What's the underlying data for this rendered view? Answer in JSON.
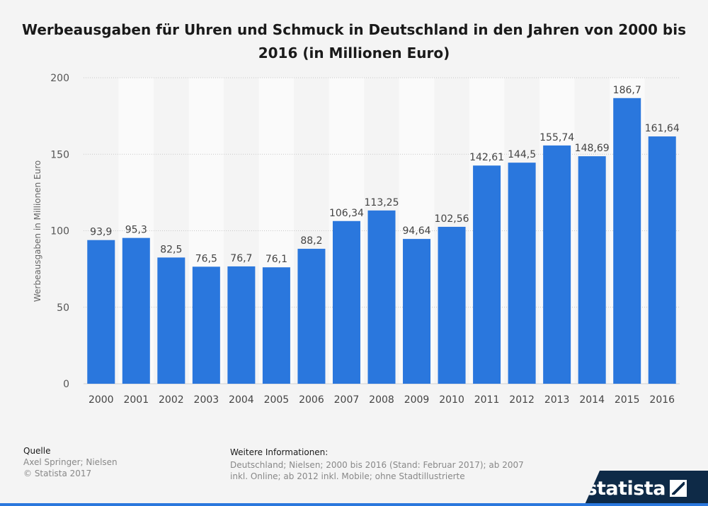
{
  "title": "Werbeausgaben für Uhren und Schmuck in Deutschland in den Jahren von 2000 bis 2016 (in Millionen Euro)",
  "footer": {
    "source_heading": "Quelle",
    "source_text": "Axel Springer; Nielsen",
    "copyright": "© Statista 2017",
    "info_heading": "Weitere Informationen:",
    "info_text": "Deutschland; Nielsen; 2000 bis 2016 (Stand: Februar 2017); ab 2007 inkl. Online; ab 2012 inkl. Mobile; ohne Stadtillustrierte"
  },
  "logo": {
    "text": "statista"
  },
  "colors": {
    "bar": "#2a77dd",
    "background": "#f4f4f4",
    "band": "#fafafa",
    "logo": "#0e2a47"
  },
  "chart_data": {
    "type": "bar",
    "categories": [
      "2000",
      "2001",
      "2002",
      "2003",
      "2004",
      "2005",
      "2006",
      "2007",
      "2008",
      "2009",
      "2010",
      "2011",
      "2012",
      "2013",
      "2014",
      "2015",
      "2016"
    ],
    "values": [
      93.9,
      95.3,
      82.5,
      76.5,
      76.7,
      76.1,
      88.2,
      106.34,
      113.25,
      94.64,
      102.56,
      142.61,
      144.5,
      155.74,
      148.69,
      186.7,
      161.64
    ],
    "value_labels": [
      "93,9",
      "95,3",
      "82,5",
      "76,5",
      "76,7",
      "76,1",
      "88,2",
      "106,34",
      "113,25",
      "94,64",
      "102,56",
      "142,61",
      "144,5",
      "155,74",
      "148,69",
      "186,7",
      "161,64"
    ],
    "xlabel": "",
    "ylabel": "Werbeausgaben in Millionen Euro",
    "ylim": [
      0,
      200
    ],
    "yticks": [
      0,
      50,
      100,
      150,
      200
    ],
    "grid": true
  }
}
